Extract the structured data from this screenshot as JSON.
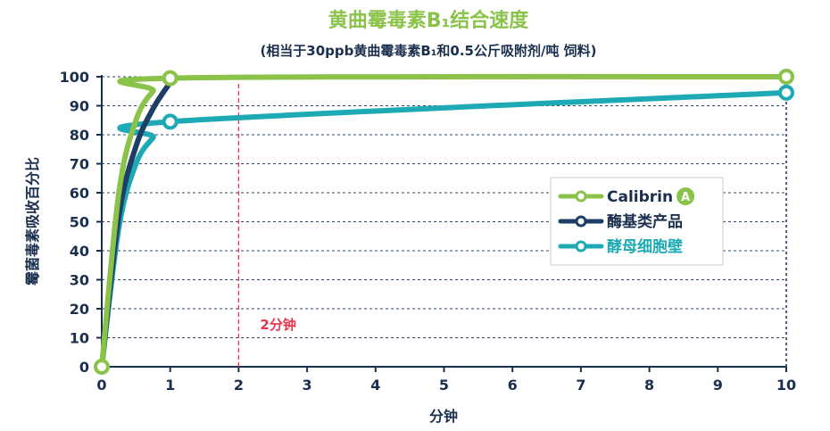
{
  "chart_data": {
    "type": "line",
    "title": "黄曲霉毒素B₁结合速度",
    "subtitle": "(相当于30ppb黄曲霉毒素B₁和0.5公斤吸附剂/吨 饲料)",
    "xlabel": "分钟",
    "ylabel": "霉菌毒素吸收百分比",
    "x_ticks": [
      "0",
      "1",
      "2",
      "3",
      "4",
      "5",
      "6",
      "7",
      "8",
      "9",
      "10"
    ],
    "y_ticks": [
      "0",
      "10",
      "20",
      "30",
      "40",
      "50",
      "60",
      "70",
      "80",
      "90",
      "100"
    ],
    "xlim": [
      0,
      10
    ],
    "ylim": [
      0,
      100
    ],
    "grid": "horizontal dashed",
    "legend_position": "right-center",
    "reference_line": {
      "x": 2,
      "label": "2分钟",
      "color": "#e8334a"
    },
    "series": [
      {
        "name": "Calibrin",
        "badge": "A",
        "color": "#8bc34a",
        "x": [
          0,
          0.25,
          0.5,
          0.75,
          1,
          10
        ],
        "y": [
          0,
          60,
          85,
          95,
          99.5,
          100
        ]
      },
      {
        "name": "酶基类产品",
        "color": "#1d3e66",
        "x": [
          0,
          0.25,
          0.5,
          0.75,
          1
        ],
        "y": [
          0,
          52,
          76,
          89,
          98
        ]
      },
      {
        "name": "酵母细胞壁",
        "color": "#1eaab5",
        "x": [
          0,
          0.25,
          0.5,
          0.75,
          1,
          10
        ],
        "y": [
          0,
          48,
          70,
          79,
          84.5,
          94.5
        ]
      }
    ],
    "markers": [
      {
        "series": 0,
        "x": 0,
        "y": 0
      },
      {
        "series": 0,
        "x": 1,
        "y": 99.5
      },
      {
        "series": 0,
        "x": 10,
        "y": 100
      },
      {
        "series": 2,
        "x": 1,
        "y": 84.5
      },
      {
        "series": 2,
        "x": 10,
        "y": 94.5
      }
    ]
  }
}
